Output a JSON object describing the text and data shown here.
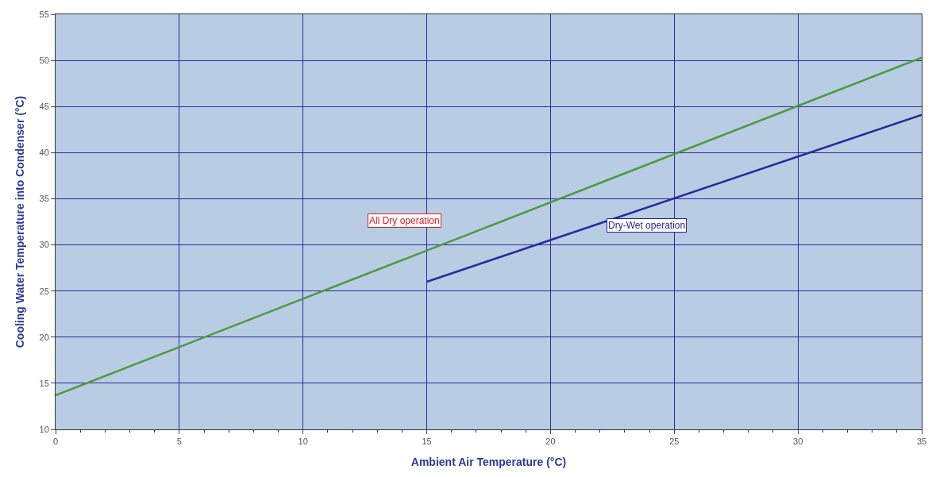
{
  "chart_data": {
    "type": "line",
    "xlabel": "Ambient Air Temperature (°C)",
    "ylabel": "Cooling Water Temperature into Condenser (°C)",
    "xlim": [
      0,
      35
    ],
    "xticks": [
      0,
      5,
      10,
      15,
      20,
      25,
      30,
      35
    ],
    "ylim": [
      10,
      55
    ],
    "yticks": [
      10,
      15,
      20,
      25,
      30,
      35,
      40,
      45,
      50,
      55
    ],
    "grid": true,
    "marker": "none",
    "line_style": "solid",
    "series": [
      {
        "color": "#4a9a3a",
        "x": [
          0,
          35
        ],
        "values": [
          13.7,
          50.3
        ]
      },
      {
        "color": "#2a2a9a",
        "x": [
          15,
          35
        ],
        "values": [
          26.0,
          44.1
        ]
      }
    ],
    "annotations": [
      "All Dry operation",
      "Dry-Wet operation"
    ]
  }
}
